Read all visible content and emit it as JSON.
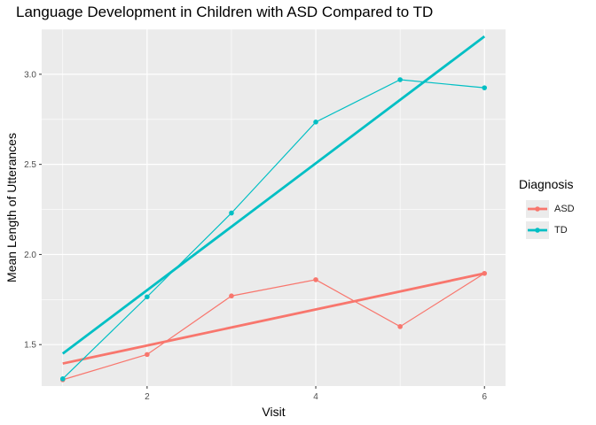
{
  "chart_data": {
    "type": "line",
    "title": "Language Development in Children with ASD Compared to TD",
    "xlabel": "Visit",
    "ylabel": "Mean Length of Utterances",
    "x": [
      1,
      2,
      3,
      4,
      5,
      6
    ],
    "xlim": [
      0.75,
      6.25
    ],
    "ylim": [
      1.27,
      3.25
    ],
    "x_ticks": [
      2,
      4,
      6
    ],
    "y_ticks": [
      1.5,
      2.0,
      2.5,
      3.0
    ],
    "x_tick_labels": [
      "2",
      "4",
      "6"
    ],
    "y_tick_labels": [
      "1.5",
      "2.0",
      "2.5",
      "3.0"
    ],
    "grid": true,
    "legend_title": "Diagnosis",
    "legend_position": "right",
    "series": [
      {
        "name": "ASD",
        "color": "#F8766D",
        "values": [
          1.305,
          1.445,
          1.77,
          1.86,
          1.6,
          1.895
        ],
        "trend": [
          1.395,
          1.895
        ]
      },
      {
        "name": "TD",
        "color": "#00BFC4",
        "values": [
          1.31,
          1.765,
          2.23,
          2.735,
          2.97,
          2.925
        ],
        "trend": [
          1.45,
          3.21
        ]
      }
    ]
  }
}
